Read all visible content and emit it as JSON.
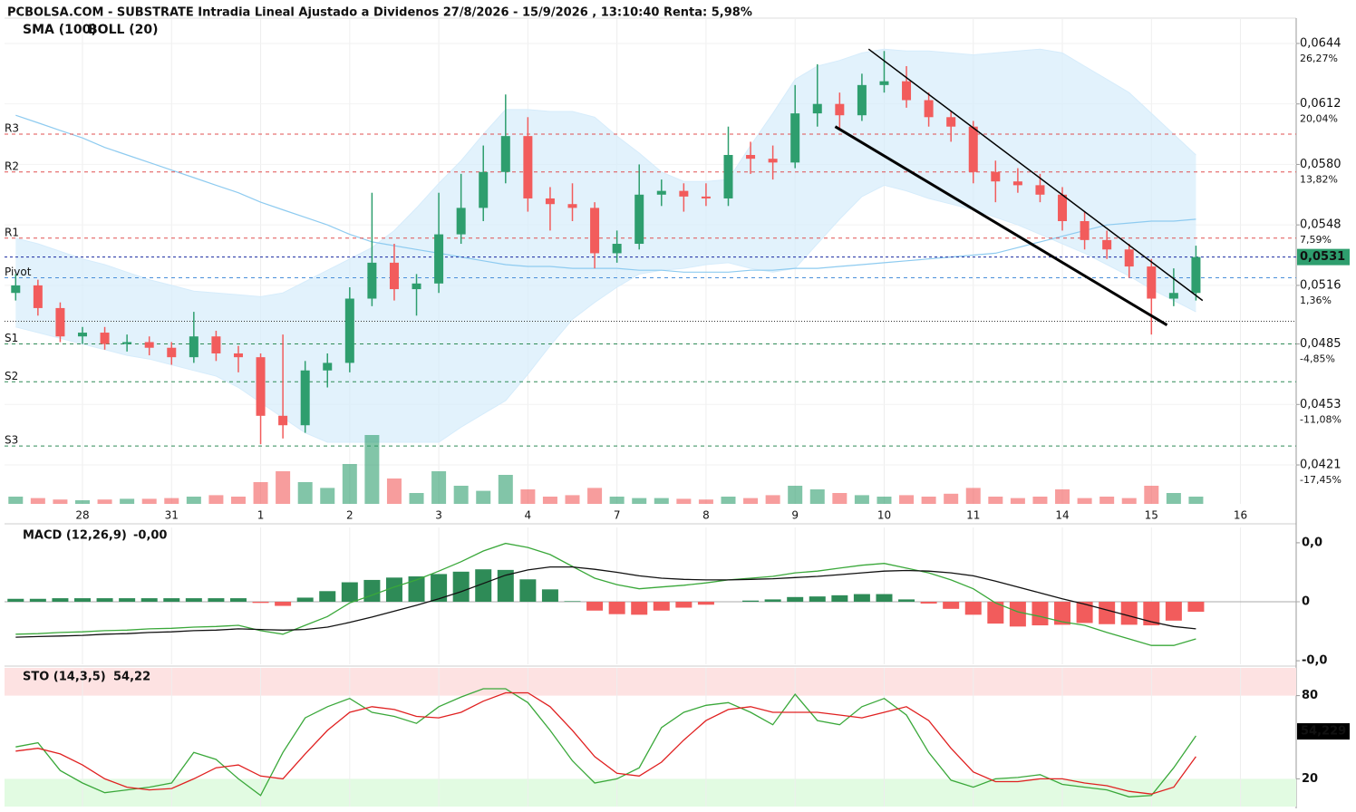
{
  "chart_data": [
    {
      "type": "candlestick",
      "title": "PCBOLSA.COM - SUBSTRATE Intradia Lineal Ajustado a Dividenos 27/8/2026 - 15/9/2026 , 13:10:40 Renta: 5,98%",
      "up_color": "#2e9e6e",
      "down_color": "#f25c5c",
      "xlim": [
        0,
        58
      ],
      "xticks": [
        {
          "value": 3.5,
          "label": "28"
        },
        {
          "value": 7.5,
          "label": "31"
        },
        {
          "value": 11.5,
          "label": "1"
        },
        {
          "value": 15.5,
          "label": "2"
        },
        {
          "value": 19.5,
          "label": "3"
        },
        {
          "value": 23.5,
          "label": "4"
        },
        {
          "value": 27.5,
          "label": "7"
        },
        {
          "value": 31.5,
          "label": "8"
        },
        {
          "value": 35.5,
          "label": "9"
        },
        {
          "value": 39.5,
          "label": "10"
        },
        {
          "value": 43.5,
          "label": "11"
        },
        {
          "value": 47.5,
          "label": "14"
        },
        {
          "value": 51.5,
          "label": "15"
        },
        {
          "value": 55.5,
          "label": "16"
        }
      ],
      "ylim": [
        0.04004,
        0.06574
      ],
      "yticks": [
        {
          "value": 0.0644,
          "label": "0,0644"
        },
        {
          "value": 0.0612,
          "label": "0,0612"
        },
        {
          "value": 0.058,
          "label": "0,0580"
        },
        {
          "value": 0.0548,
          "label": "0,0548"
        },
        {
          "value": 0.0516,
          "label": "0,0516"
        },
        {
          "value": 0.0485,
          "label": "0,0485"
        },
        {
          "value": 0.0453,
          "label": "0,0453"
        },
        {
          "value": 0.0421,
          "label": "0,0421"
        }
      ],
      "ytick_changes": [
        {
          "value": 26.27,
          "label": "26,27%"
        },
        {
          "value": 20.04,
          "label": "20,04%"
        },
        {
          "value": 13.82,
          "label": "13,82%"
        },
        {
          "value": 7.59,
          "label": "7,59%"
        },
        {
          "value": 1.36,
          "label": "1,36%"
        },
        {
          "value": -4.85,
          "label": "-4,85%"
        },
        {
          "value": -11.08,
          "label": "-11,08%"
        },
        {
          "value": -17.45,
          "label": "-17,45%"
        }
      ],
      "legend": [
        {
          "name": "SMA (100)",
          "color": "#8ecbf0"
        },
        {
          "name": "BOLL (20)",
          "color": "#bbbbbb"
        }
      ],
      "candles": [
        [
          0.0512,
          0.0522,
          0.0508,
          0.0516
        ],
        [
          0.0516,
          0.0519,
          0.05,
          0.0504
        ],
        [
          0.0504,
          0.0507,
          0.0486,
          0.0489
        ],
        [
          0.0489,
          0.0494,
          0.0485,
          0.0491
        ],
        [
          0.0491,
          0.0494,
          0.0482,
          0.0485
        ],
        [
          0.0485,
          0.049,
          0.0481,
          0.0486
        ],
        [
          0.0486,
          0.0489,
          0.0479,
          0.0483
        ],
        [
          0.0483,
          0.0486,
          0.0474,
          0.0478
        ],
        [
          0.0478,
          0.0502,
          0.0475,
          0.0489
        ],
        [
          0.0489,
          0.0492,
          0.0476,
          0.048
        ],
        [
          0.048,
          0.0484,
          0.047,
          0.0478
        ],
        [
          0.0478,
          0.048,
          0.0432,
          0.0447
        ],
        [
          0.0447,
          0.049,
          0.0435,
          0.0442
        ],
        [
          0.0442,
          0.0476,
          0.0438,
          0.0471
        ],
        [
          0.0471,
          0.048,
          0.0462,
          0.0475
        ],
        [
          0.0475,
          0.0515,
          0.047,
          0.0509
        ],
        [
          0.0509,
          0.0565,
          0.0505,
          0.0528
        ],
        [
          0.0528,
          0.0538,
          0.0508,
          0.0514
        ],
        [
          0.0514,
          0.0522,
          0.05,
          0.0517
        ],
        [
          0.0517,
          0.0565,
          0.0512,
          0.0543
        ],
        [
          0.0543,
          0.0575,
          0.0538,
          0.0557
        ],
        [
          0.0557,
          0.059,
          0.055,
          0.0576
        ],
        [
          0.0576,
          0.0617,
          0.057,
          0.0595
        ],
        [
          0.0595,
          0.0605,
          0.0555,
          0.0562
        ],
        [
          0.0562,
          0.0568,
          0.0545,
          0.0559
        ],
        [
          0.0559,
          0.057,
          0.055,
          0.0557
        ],
        [
          0.0557,
          0.056,
          0.0525,
          0.0533
        ],
        [
          0.0533,
          0.0545,
          0.0528,
          0.0538
        ],
        [
          0.0538,
          0.058,
          0.0535,
          0.0564
        ],
        [
          0.0564,
          0.0572,
          0.0558,
          0.0566
        ],
        [
          0.0566,
          0.057,
          0.0555,
          0.0563
        ],
        [
          0.0563,
          0.057,
          0.0558,
          0.0562
        ],
        [
          0.0562,
          0.06,
          0.0558,
          0.0585
        ],
        [
          0.0585,
          0.0592,
          0.0575,
          0.0583
        ],
        [
          0.0583,
          0.059,
          0.0572,
          0.0581
        ],
        [
          0.0581,
          0.0622,
          0.0578,
          0.0607
        ],
        [
          0.0607,
          0.0633,
          0.06,
          0.0612
        ],
        [
          0.0612,
          0.0618,
          0.0598,
          0.0606
        ],
        [
          0.0606,
          0.0628,
          0.0603,
          0.0622
        ],
        [
          0.0622,
          0.064,
          0.0618,
          0.0624
        ],
        [
          0.0624,
          0.0632,
          0.061,
          0.0614
        ],
        [
          0.0614,
          0.0618,
          0.06,
          0.0605
        ],
        [
          0.0605,
          0.0608,
          0.0592,
          0.06
        ],
        [
          0.06,
          0.0603,
          0.057,
          0.0576
        ],
        [
          0.0576,
          0.0582,
          0.056,
          0.0571
        ],
        [
          0.0571,
          0.0578,
          0.0565,
          0.0569
        ],
        [
          0.0569,
          0.0575,
          0.056,
          0.0564
        ],
        [
          0.0564,
          0.0568,
          0.0545,
          0.055
        ],
        [
          0.055,
          0.0555,
          0.0535,
          0.054
        ],
        [
          0.054,
          0.0545,
          0.053,
          0.0535
        ],
        [
          0.0535,
          0.0538,
          0.052,
          0.0526
        ],
        [
          0.0526,
          0.053,
          0.049,
          0.0509
        ],
        [
          0.0509,
          0.0525,
          0.0505,
          0.0512
        ],
        [
          0.0512,
          0.0537,
          0.0508,
          0.0531
        ]
      ],
      "volume_ylim": [
        0,
        100
      ],
      "volume": [
        10,
        8,
        6,
        5,
        6,
        7,
        7,
        8,
        10,
        12,
        10,
        30,
        45,
        30,
        22,
        55,
        95,
        35,
        15,
        45,
        25,
        18,
        40,
        20,
        10,
        12,
        22,
        10,
        8,
        8,
        7,
        6,
        10,
        8,
        12,
        25,
        20,
        15,
        12,
        10,
        12,
        10,
        14,
        22,
        10,
        8,
        10,
        20,
        8,
        10,
        8,
        25,
        15,
        10
      ],
      "bollinger": {
        "name": "BOLL (20)",
        "color": "#d6ecfb",
        "upper": [
          0.0541,
          0.0538,
          0.0534,
          0.053,
          0.0527,
          0.0523,
          0.0519,
          0.0516,
          0.0513,
          0.0512,
          0.0511,
          0.051,
          0.0512,
          0.0518,
          0.0524,
          0.053,
          0.0536,
          0.0545,
          0.0557,
          0.057,
          0.0582,
          0.0596,
          0.0609,
          0.0609,
          0.0608,
          0.0608,
          0.0605,
          0.0595,
          0.0586,
          0.0576,
          0.0571,
          0.0571,
          0.0572,
          0.059,
          0.0607,
          0.0625,
          0.0632,
          0.0635,
          0.0639,
          0.0641,
          0.064,
          0.064,
          0.0639,
          0.0638,
          0.0639,
          0.064,
          0.0641,
          0.0639,
          0.0632,
          0.0625,
          0.0618,
          0.0607,
          0.0596,
          0.0585
        ],
        "lower": [
          0.0494,
          0.0491,
          0.0488,
          0.0485,
          0.0482,
          0.0479,
          0.0477,
          0.0474,
          0.0471,
          0.0468,
          0.0462,
          0.0454,
          0.0446,
          0.0438,
          0.0433,
          0.0433,
          0.0433,
          0.0433,
          0.0433,
          0.0433,
          0.0441,
          0.0448,
          0.0455,
          0.0469,
          0.0484,
          0.0498,
          0.0507,
          0.0515,
          0.0522,
          0.0524,
          0.0525,
          0.0527,
          0.0528,
          0.0525,
          0.0523,
          0.0525,
          0.0538,
          0.0551,
          0.0563,
          0.0569,
          0.0566,
          0.0562,
          0.0559,
          0.0556,
          0.0552,
          0.0548,
          0.0543,
          0.0538,
          0.0533,
          0.0527,
          0.0521,
          0.0514,
          0.0508,
          0.0502
        ]
      },
      "sma": {
        "name": "SMA (100)",
        "color": "#8ecbf0",
        "values": [
          0.0606,
          0.0602,
          0.0598,
          0.0594,
          0.0589,
          0.0585,
          0.0581,
          0.0577,
          0.0573,
          0.0569,
          0.0565,
          0.056,
          0.0556,
          0.0552,
          0.0548,
          0.0543,
          0.0539,
          0.0537,
          0.0535,
          0.0533,
          0.0531,
          0.0529,
          0.0527,
          0.0526,
          0.0526,
          0.0525,
          0.0525,
          0.0525,
          0.0524,
          0.0524,
          0.0523,
          0.0523,
          0.0523,
          0.0524,
          0.0524,
          0.0525,
          0.0525,
          0.0526,
          0.0527,
          0.0528,
          0.0529,
          0.053,
          0.0531,
          0.0532,
          0.0533,
          0.0536,
          0.0539,
          0.0542,
          0.0545,
          0.0548,
          0.0549,
          0.055,
          0.055,
          0.0551
        ]
      },
      "levels": [
        {
          "name": "R3",
          "value": 0.0596,
          "color": "#e05050"
        },
        {
          "name": "R2",
          "value": 0.0576,
          "color": "#e05050"
        },
        {
          "name": "R1",
          "value": 0.0541,
          "color": "#e05050"
        },
        {
          "name": "Pivot",
          "value": 0.052,
          "color": "#4a90d9"
        },
        {
          "name": "S1",
          "value": 0.0485,
          "color": "#2e8b57"
        },
        {
          "name": "S2",
          "value": 0.0465,
          "color": "#2e8b57"
        },
        {
          "name": "S3",
          "value": 0.0431,
          "color": "#2e8b57"
        }
      ],
      "reference_line": 0.0497,
      "last_price": {
        "value": 0.0531,
        "label": "0,0531"
      },
      "trendlines": [
        {
          "x": [
            38.8,
            53.8
          ],
          "y": [
            0.0641,
            0.0508
          ],
          "weight": "thin"
        },
        {
          "x": [
            37.3,
            52.2
          ],
          "y": [
            0.06,
            0.0495
          ],
          "weight": "bold"
        }
      ]
    },
    {
      "type": "macd",
      "title": "MACD (12,26,9)",
      "title_value": {
        "value": -0.00063,
        "label": "-0,00"
      },
      "xlim": [
        0,
        58
      ],
      "ylim": [
        -0.00106,
        0.00126
      ],
      "yticks": [
        {
          "value": 0.001,
          "label": "0,0"
        },
        0,
        {
          "value": -0.001,
          "label": "-0,0"
        }
      ],
      "series": [
        {
          "name": "MACD",
          "color": "#3aa83a",
          "values": [
            -0.00055,
            -0.00054,
            -0.00052,
            -0.00051,
            -0.00049,
            -0.00048,
            -0.00046,
            -0.00045,
            -0.00043,
            -0.00042,
            -0.0004,
            -0.00049,
            -0.00055,
            -0.0004,
            -0.00025,
            -2e-05,
            0.00011,
            0.00025,
            0.00037,
            0.00052,
            0.00068,
            0.00086,
            0.00099,
            0.00092,
            0.0008,
            0.0006,
            0.0004,
            0.00029,
            0.00022,
            0.00025,
            0.00028,
            0.00032,
            0.00037,
            0.0004,
            0.00043,
            0.00049,
            0.00052,
            0.00057,
            0.00062,
            0.00065,
            0.00057,
            0.00049,
            0.00037,
            0.00022,
            -2e-05,
            -0.00017,
            -0.00025,
            -0.00034,
            -0.0004,
            -0.00052,
            -0.00063,
            -0.00074,
            -0.00074,
            -0.00063
          ]
        },
        {
          "name": "Signal",
          "color": "#111111",
          "values": [
            -0.0006,
            -0.00059,
            -0.00058,
            -0.00057,
            -0.00055,
            -0.00054,
            -0.00052,
            -0.00051,
            -0.00049,
            -0.00048,
            -0.00046,
            -0.00047,
            -0.00048,
            -0.00047,
            -0.00043,
            -0.00035,
            -0.00026,
            -0.00016,
            -6e-05,
            5e-05,
            0.00017,
            0.00031,
            0.00045,
            0.00054,
            0.00059,
            0.00059,
            0.00055,
            0.0005,
            0.00044,
            0.0004,
            0.00038,
            0.00037,
            0.00037,
            0.00038,
            0.00039,
            0.00041,
            0.00043,
            0.00046,
            0.00049,
            0.00052,
            0.00053,
            0.00052,
            0.00049,
            0.00044,
            0.00035,
            0.00025,
            0.00015,
            5e-05,
            -4e-05,
            -0.00014,
            -0.00024,
            -0.00034,
            -0.00042,
            -0.00046
          ]
        }
      ],
      "histogram": {
        "up_color": "#2e8b57",
        "down_color": "#f25c5c",
        "values": [
          5e-05,
          5e-05,
          6e-05,
          6e-05,
          6e-05,
          6e-05,
          6e-05,
          6e-05,
          6e-05,
          6e-05,
          6e-05,
          -2e-05,
          -7e-05,
          7e-05,
          0.00018,
          0.00033,
          0.00037,
          0.00041,
          0.00043,
          0.00047,
          0.00051,
          0.00055,
          0.00054,
          0.00038,
          0.00021,
          1e-05,
          -0.00015,
          -0.00021,
          -0.00022,
          -0.00015,
          -0.0001,
          -5e-05,
          0,
          2e-05,
          4e-05,
          8e-05,
          9e-05,
          0.00011,
          0.00013,
          0.00013,
          4e-05,
          -3e-05,
          -0.00012,
          -0.00022,
          -0.00037,
          -0.00042,
          -0.0004,
          -0.00039,
          -0.00036,
          -0.00038,
          -0.00039,
          -0.0004,
          -0.00032,
          -0.00017
        ]
      }
    },
    {
      "type": "stochastic",
      "title": "STO (14,3,5)",
      "title_value": {
        "value": 54.22,
        "label": "54,22"
      },
      "current": {
        "value": 54.229,
        "label": "54,229"
      },
      "xlim": [
        0,
        58
      ],
      "ylim": [
        0,
        100
      ],
      "yticks": [
        20,
        80
      ],
      "zone_colors": [
        "#e2fbe2",
        "#fde2e2"
      ],
      "series": [
        {
          "name": "%K",
          "color": "#3aa83a",
          "values": [
            43,
            46,
            26,
            17,
            10,
            12,
            14,
            17,
            39,
            34,
            20,
            8,
            39,
            64,
            72,
            78,
            68,
            65,
            60,
            72,
            79,
            85,
            85,
            75,
            55,
            33,
            17,
            20,
            28,
            57,
            68,
            73,
            75,
            68,
            59,
            81,
            62,
            59,
            72,
            78,
            66,
            39,
            19,
            14,
            20,
            21,
            23,
            16,
            14,
            12,
            7,
            8,
            28,
            51
          ]
        },
        {
          "name": "%D",
          "color": "#e02020",
          "values": [
            40,
            42,
            38,
            30,
            20,
            14,
            12,
            13,
            20,
            28,
            30,
            22,
            20,
            38,
            55,
            68,
            72,
            70,
            65,
            64,
            68,
            76,
            82,
            82,
            72,
            55,
            36,
            24,
            22,
            32,
            48,
            62,
            70,
            72,
            68,
            68,
            68,
            66,
            64,
            68,
            72,
            62,
            42,
            25,
            18,
            18,
            20,
            20,
            17,
            15,
            11,
            9,
            14,
            36
          ]
        }
      ]
    }
  ]
}
